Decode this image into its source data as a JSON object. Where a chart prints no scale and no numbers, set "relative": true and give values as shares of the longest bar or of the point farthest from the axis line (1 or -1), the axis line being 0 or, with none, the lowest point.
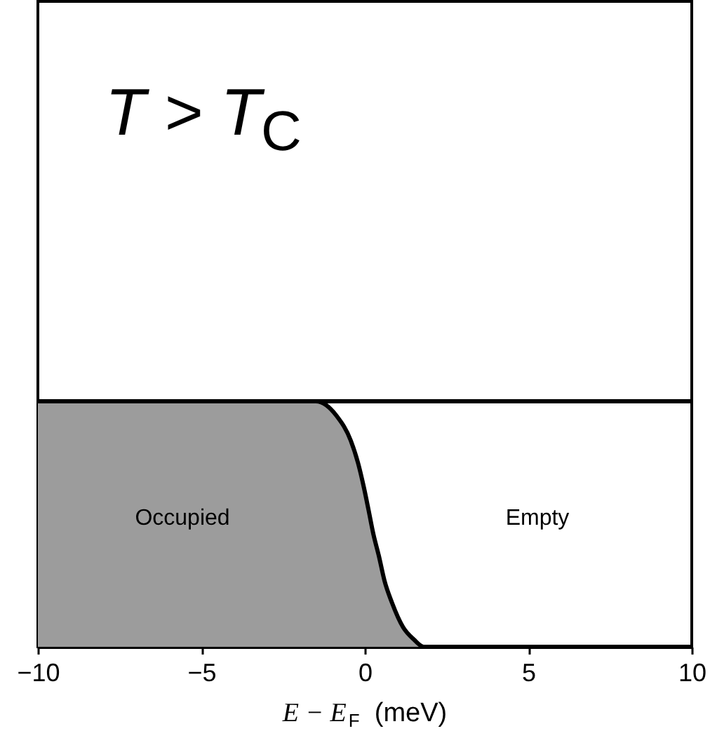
{
  "chart_data": {
    "type": "area",
    "relative": true,
    "title": "T > T$_{C}$",
    "xlabel": "E − E$_{F}$  (meV)",
    "xlim": [
      -10,
      10
    ],
    "xticks": [
      -10,
      -5,
      0,
      5,
      10
    ],
    "series": [
      {
        "color": "#9c9c9c",
        "x": [
          -10,
          -1.5,
          -0.86,
          -0.43,
          -0.21,
          -0.03,
          0.11,
          0.26,
          0.43,
          0.6,
          0.83,
          1.17,
          1.5,
          1.8,
          10
        ],
        "values": [
          1,
          1,
          0.94,
          0.84,
          0.75,
          0.65,
          0.56,
          0.46,
          0.37,
          0.27,
          0.18,
          0.08,
          0.03,
          0,
          0
        ]
      },
      {
        "type": "line",
        "color": "#000000",
        "x": [
          -10,
          10
        ],
        "values": [
          1,
          1
        ]
      }
    ],
    "annotations": [
      "Occupied",
      "Empty"
    ]
  }
}
